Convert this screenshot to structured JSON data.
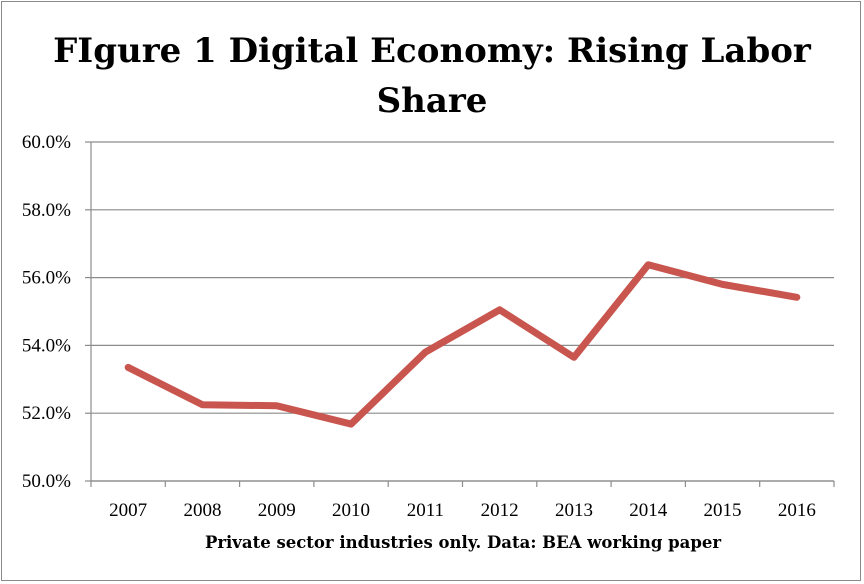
{
  "chart_data": {
    "type": "line",
    "title_lines": [
      "FIgure 1 Digital Economy: Rising Labor",
      "Share"
    ],
    "xlabel": "Private sector industries only. Data: BEA working paper",
    "ylabel": "",
    "categories": [
      "2007",
      "2008",
      "2009",
      "2010",
      "2011",
      "2012",
      "2013",
      "2014",
      "2015",
      "2016"
    ],
    "series": [
      {
        "values": [
          53.35,
          52.25,
          52.22,
          51.68,
          53.8,
          55.05,
          53.65,
          56.38,
          55.8,
          55.42
        ]
      }
    ],
    "ylim": [
      50,
      60
    ],
    "yticks": [
      50,
      52,
      54,
      56,
      58,
      60
    ],
    "ytick_labels": [
      "50.0%",
      "52.0%",
      "54.0%",
      "56.0%",
      "58.0%",
      "60.0%"
    ],
    "grid": true,
    "legend": "none",
    "line_color": "#c9554f"
  }
}
